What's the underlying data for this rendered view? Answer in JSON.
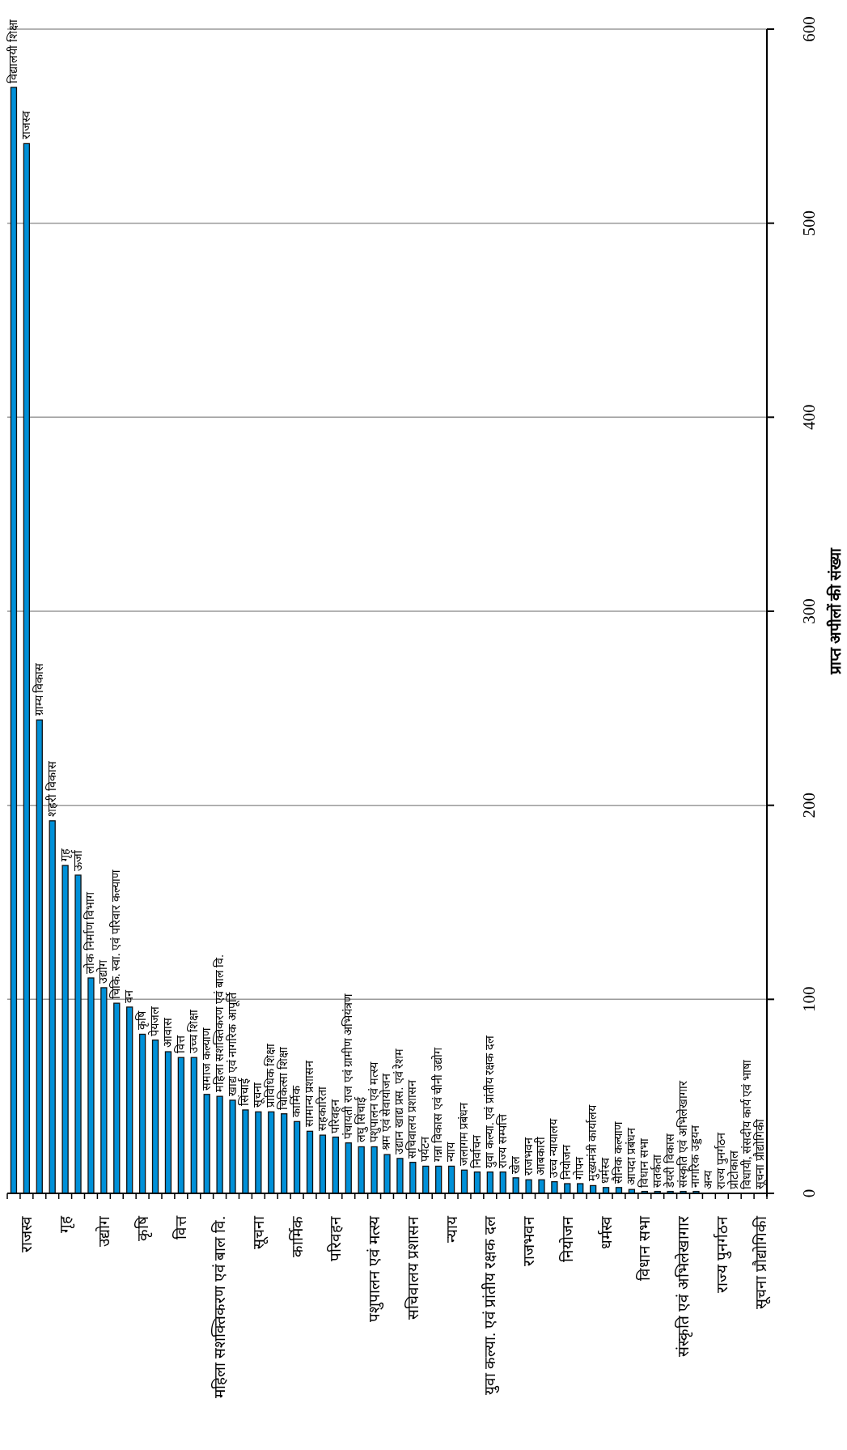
{
  "chart_data": {
    "type": "bar",
    "ylabel": "प्राप्त अपीलों की संख्या",
    "categories": [
      null,
      "राजस्व",
      null,
      null,
      "गृह",
      null,
      null,
      "उद्योग",
      null,
      null,
      "कृषि",
      null,
      null,
      "वित्त",
      null,
      null,
      "महिला सशक्तिकरण एवं बाल वि.",
      null,
      null,
      "सूचना",
      null,
      null,
      "कार्मिक",
      null,
      null,
      "परिवहन",
      null,
      null,
      "पशुपालन एवं मत्स्य",
      null,
      null,
      "सचिवालय प्रशासन",
      null,
      null,
      "न्याय",
      null,
      null,
      "युवा कल्या. एवं प्रांतीय रक्षक दल",
      null,
      null,
      "राजभवन",
      null,
      null,
      "नियोजन",
      null,
      null,
      "धर्मस्व",
      null,
      null,
      "विधान सभा",
      null,
      null,
      "संस्कृति एवं अभिलेखागार",
      null,
      null,
      "राज्य पुनर्गठन",
      null,
      null,
      "सूचना प्रौद्योगिकी"
    ],
    "values": [
      570,
      541,
      244,
      192,
      169,
      164,
      111,
      106,
      98,
      96,
      82,
      79,
      73,
      70,
      70,
      51,
      50,
      48,
      43,
      42,
      42,
      41,
      37,
      32,
      30,
      29,
      26,
      24,
      24,
      20,
      18,
      16,
      14,
      14,
      14,
      12,
      11,
      11,
      11,
      8,
      7,
      7,
      6,
      5,
      5,
      4,
      3,
      3,
      2,
      1,
      1,
      1,
      1,
      1,
      0,
      0,
      0,
      0,
      0
    ],
    "value_labels": [
      "विद्यालयी शिक्षा",
      "राजस्व",
      "ग्राम्य विकास",
      "शहरी विकास",
      "गृह",
      "ऊर्जा",
      "लोक निर्माण विभाग",
      "उद्योग",
      "चिकि. स्वा. एवं परिवार कल्याण",
      "वन",
      "कृषि",
      "पेयजल",
      "आवास",
      "वित्त",
      "उच्च शिक्षा",
      "समाज कल्याण",
      "महिला सशक्तिकरण एवं बाल वि.",
      "खाद्य एवं नागरिक आपूर्ति",
      "सिंचाई",
      "सूचना",
      "प्राविधिक शिक्षा",
      "चिकित्सा शिक्षा",
      "कार्मिक",
      "सामान्य प्रशासन",
      "सहकारिता",
      "परिवहन",
      "पंचायती राज एवं ग्रामीण अभियंत्रण",
      "लघु सिंचाई",
      "पशुपालन एवं मत्स्य",
      "श्रम एवं सेवायोजन",
      "उद्यान खाद्य प्रस. एवं रेशम",
      "सचिवालय प्रशासन",
      "पर्यटन",
      "गन्ना विकास एवं चीनी उद्योग",
      "न्याय",
      "जलागम प्रबंधन",
      "निर्वाचन",
      "युवा कल्या. एवं प्रांतीय रक्षक दल",
      "राज्य सम्पत्ति",
      "खेल",
      "राजभवन",
      "आबकारी",
      "उच्च न्यायालय",
      "नियोजन",
      "गोपन",
      "मुख्यमंत्री कार्यालय",
      "धर्मस्व",
      "सैनिक कल्याण",
      "आपदा प्रबंधन",
      "विधान सभा",
      "सतर्कता",
      "डेयरी विकास",
      "संस्कृति एवं अभिलेखागार",
      "नागरिक उड्डयन",
      "अन्य",
      "राज्य पुनर्गठन",
      "प्रोटोकाल",
      "विधायी, संसदीय कार्य एवं भाषा",
      "सूचना प्रौद्योगिकी"
    ],
    "color": "#0090d8",
    "ylim": [
      0,
      600
    ],
    "yticks": [
      0,
      100,
      200,
      300,
      400,
      500,
      600
    ],
    "grid": "y"
  }
}
